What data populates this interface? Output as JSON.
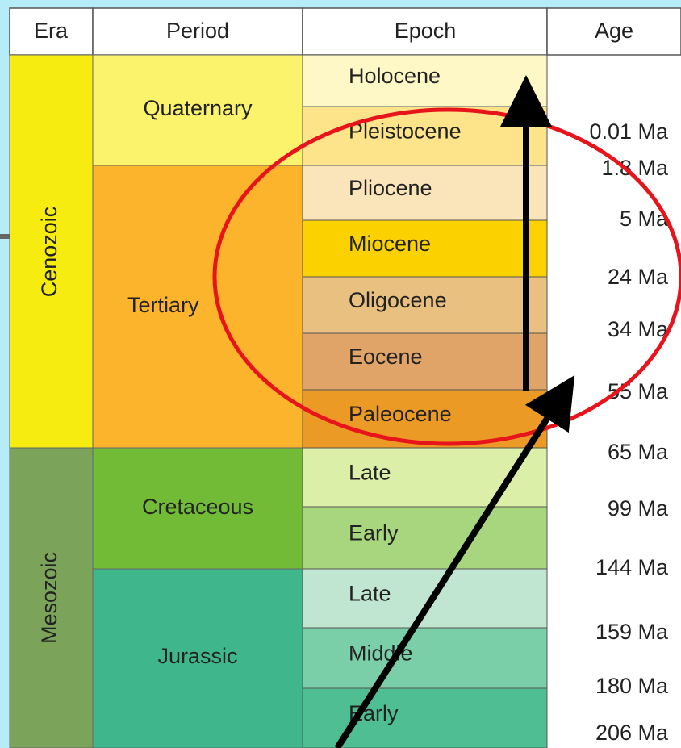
{
  "header": {
    "columns": [
      "Era",
      "Period",
      "Epoch",
      "Age"
    ]
  },
  "eras": [
    "Cenozoic",
    "Mesozoic"
  ],
  "periods": [
    "Quaternary",
    "Tertiary",
    "Cretaceous",
    "Jurassic"
  ],
  "epochs": [
    "Holocene",
    "Pleistocene",
    "Pliocene",
    "Miocene",
    "Oligocene",
    "Eocene",
    "Paleocene",
    "Late",
    "Early",
    "Late",
    "Middle",
    "Early"
  ],
  "ages": [
    "0.01 Ma",
    "1.8 Ma",
    "5 Ma",
    "24 Ma",
    "34 Ma",
    "55 Ma",
    "65 Ma",
    "99 Ma",
    "144 Ma",
    "159 Ma",
    "180 Ma",
    "206 Ma"
  ]
}
